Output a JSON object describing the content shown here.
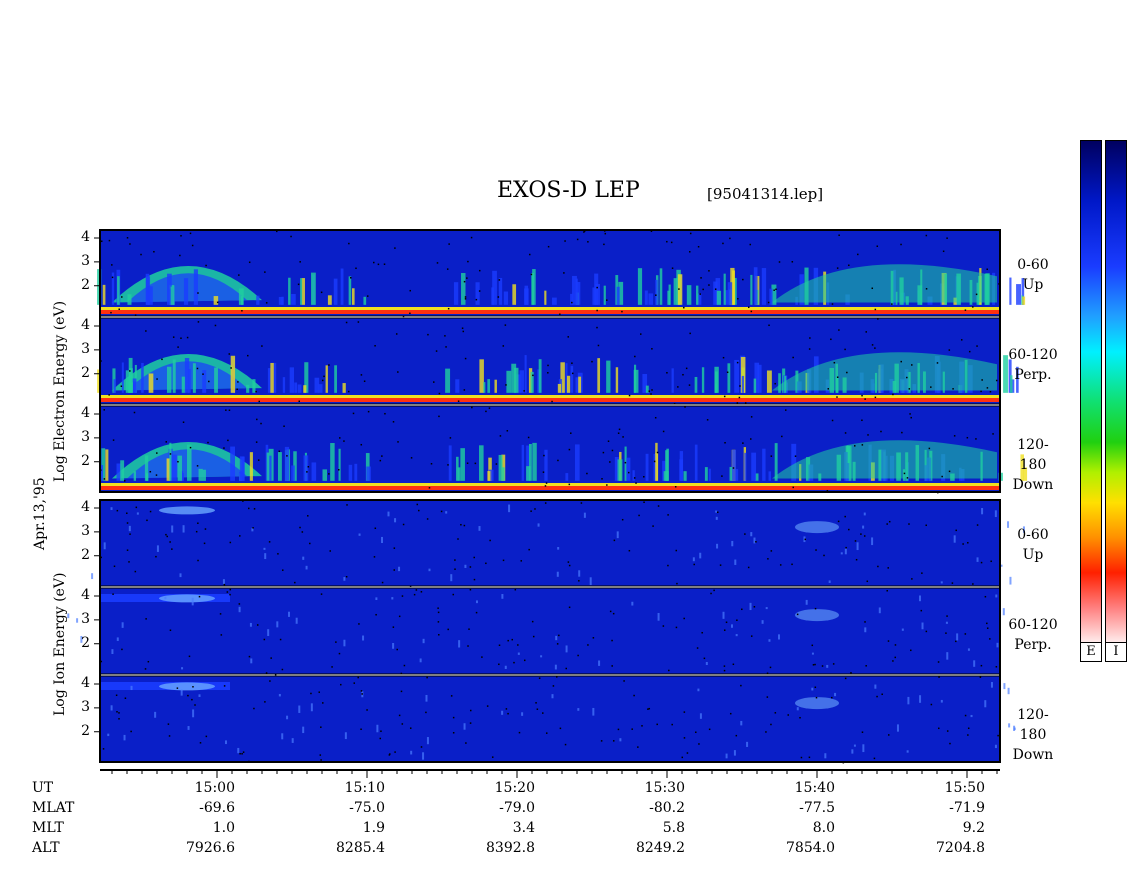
{
  "title": "EXOS-D LEP",
  "file_label": "[95041314.lep]",
  "date_label": "Apr.13,'95",
  "electron_label": "Log   Electron   Energy   (eV)",
  "ion_label": "Log   Ion   Energy   (eV)",
  "colorbar_labels": [
    "E",
    "I"
  ],
  "colors": {
    "background": "#0a1fc8",
    "low": "#1a3cff",
    "mid": "#1fd0a0",
    "high": "#f0e020",
    "peak": "#ff3010"
  },
  "time_rows": {
    "labels": [
      "UT",
      "MLAT",
      "MLT",
      "ALT"
    ],
    "ut": [
      "15:00",
      "15:10",
      "15:20",
      "15:30",
      "15:40",
      "15:50"
    ],
    "mlat": [
      "-69.6",
      "-75.0",
      "-79.0",
      "-80.2",
      "-77.5",
      "-71.9"
    ],
    "mlt": [
      "1.0",
      "1.9",
      "3.4",
      "5.8",
      "8.0",
      "9.2"
    ],
    "alt": [
      "7926.6",
      "8285.4",
      "8392.8",
      "8249.2",
      "7854.0",
      "7204.8"
    ]
  },
  "chart_data": {
    "type": "heatmap",
    "title": "EXOS-D LEP",
    "xlabel": "UT",
    "x_ticks": [
      "15:00",
      "15:10",
      "15:20",
      "15:30",
      "15:40",
      "15:50"
    ],
    "y_scale": "log10 energy (eV)",
    "panels": [
      {
        "species": "Electron",
        "pitch_angle": "0-60",
        "direction": "Up",
        "yticks": [
          "4",
          "3",
          "2"
        ]
      },
      {
        "species": "Electron",
        "pitch_angle": "60-120",
        "direction": "Perp.",
        "yticks": [
          "4",
          "3",
          "2"
        ]
      },
      {
        "species": "Electron",
        "pitch_angle": "120-180",
        "direction": "Down",
        "yticks": [
          "4",
          "3",
          "2"
        ]
      },
      {
        "species": "Ion",
        "pitch_angle": "0-60",
        "direction": "Up",
        "yticks": [
          "4",
          "3",
          "2"
        ]
      },
      {
        "species": "Ion",
        "pitch_angle": "60-120",
        "direction": "Perp.",
        "yticks": [
          "4",
          "3",
          "2"
        ]
      },
      {
        "species": "Ion",
        "pitch_angle": "120-180",
        "direction": "Down",
        "yticks": [
          "4",
          "3",
          "2"
        ]
      }
    ]
  }
}
